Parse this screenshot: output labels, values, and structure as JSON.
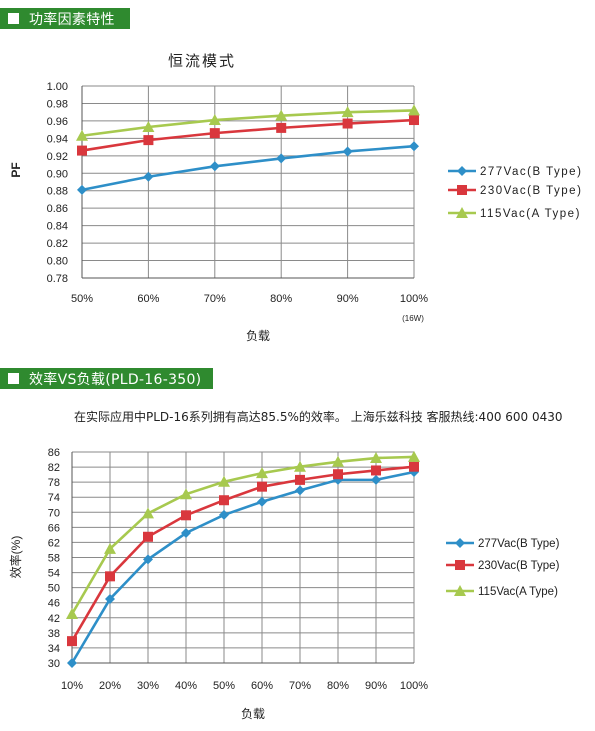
{
  "section1": {
    "header": "功率因素特性"
  },
  "section2": {
    "header": "效率VS负载(PLD-16-350)",
    "note": "在实际应用中PLD-16系列拥有高达85.5%的效率。 上海乐兹科技 客服热线:400 600 0430"
  },
  "chart_data": [
    {
      "type": "line",
      "title": "恒流模式",
      "xlabel": "负载",
      "ylabel": "PF",
      "x_note": "(16W)",
      "categories": [
        "50%",
        "60%",
        "70%",
        "80%",
        "90%",
        "100%"
      ],
      "ylim": [
        0.78,
        1.0
      ],
      "yticks": [
        1.0,
        0.98,
        0.96,
        0.94,
        0.92,
        0.9,
        0.88,
        0.86,
        0.84,
        0.82,
        0.8,
        0.78
      ],
      "grid": true,
      "legend": "right",
      "series": [
        {
          "name": "277Vac(B Type)",
          "color": "#2e8fc8",
          "marker": "diamond",
          "values": [
            0.881,
            0.896,
            0.908,
            0.917,
            0.925,
            0.931
          ]
        },
        {
          "name": "230Vac(B Type)",
          "color": "#d9373d",
          "marker": "square",
          "values": [
            0.926,
            0.938,
            0.946,
            0.952,
            0.957,
            0.961
          ]
        },
        {
          "name": "115Vac(A Type)",
          "color": "#a7c94f",
          "marker": "triangle",
          "values": [
            0.943,
            0.953,
            0.961,
            0.966,
            0.97,
            0.972
          ]
        }
      ]
    },
    {
      "type": "line",
      "title": "",
      "xlabel": "负载",
      "ylabel": "效率(%)",
      "categories": [
        "10%",
        "20%",
        "30%",
        "40%",
        "50%",
        "60%",
        "70%",
        "80%",
        "90%",
        "100%"
      ],
      "ylim": [
        30,
        86
      ],
      "yticks": [
        86,
        82,
        78,
        74,
        70,
        66,
        62,
        58,
        54,
        50,
        46,
        42,
        38,
        34,
        30
      ],
      "grid": true,
      "legend": "right",
      "series": [
        {
          "name": "277Vac(B Type)",
          "color": "#2e8fc8",
          "marker": "diamond",
          "values": [
            30.0,
            47.0,
            57.5,
            64.5,
            69.3,
            72.8,
            75.8,
            78.6,
            78.6,
            80.7
          ]
        },
        {
          "name": "230Vac(B Type)",
          "color": "#d9373d",
          "marker": "square",
          "values": [
            35.8,
            53.0,
            63.5,
            69.2,
            73.2,
            76.8,
            78.6,
            80.1,
            81.1,
            82.1
          ]
        },
        {
          "name": "115Vac(A Type)",
          "color": "#a7c94f",
          "marker": "triangle",
          "values": [
            43.0,
            60.3,
            69.7,
            74.8,
            78.1,
            80.4,
            82.1,
            83.4,
            84.4,
            84.7
          ]
        }
      ]
    }
  ]
}
